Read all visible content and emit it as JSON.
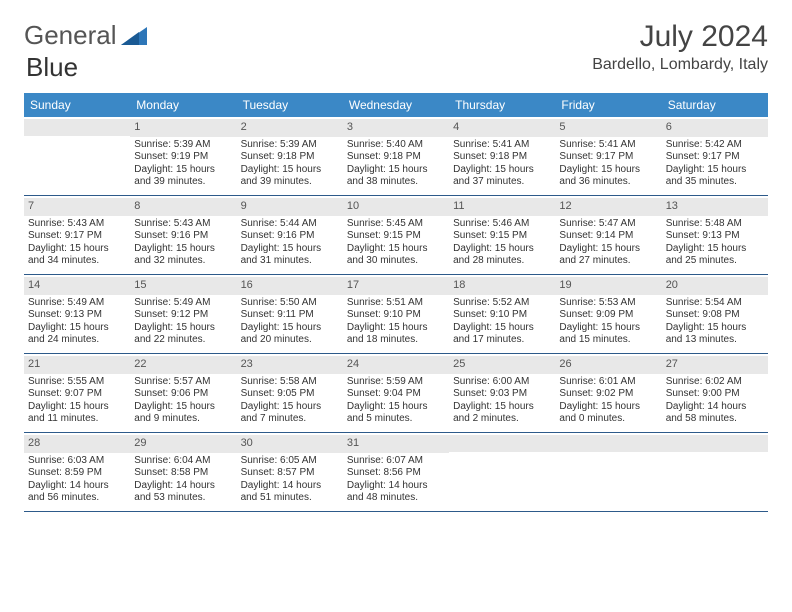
{
  "brand": {
    "part1": "General",
    "part2": "Blue"
  },
  "title": "July 2024",
  "location": "Bardello, Lombardy, Italy",
  "weekday_bg": "#3b88c6",
  "daynum_bg": "#e8e8e8",
  "border_color": "#2d5a8a",
  "weekdays": [
    "Sunday",
    "Monday",
    "Tuesday",
    "Wednesday",
    "Thursday",
    "Friday",
    "Saturday"
  ],
  "weeks": [
    [
      {
        "n": "",
        "sr": "",
        "ss": "",
        "dl1": "",
        "dl2": ""
      },
      {
        "n": "1",
        "sr": "Sunrise: 5:39 AM",
        "ss": "Sunset: 9:19 PM",
        "dl1": "Daylight: 15 hours",
        "dl2": "and 39 minutes."
      },
      {
        "n": "2",
        "sr": "Sunrise: 5:39 AM",
        "ss": "Sunset: 9:18 PM",
        "dl1": "Daylight: 15 hours",
        "dl2": "and 39 minutes."
      },
      {
        "n": "3",
        "sr": "Sunrise: 5:40 AM",
        "ss": "Sunset: 9:18 PM",
        "dl1": "Daylight: 15 hours",
        "dl2": "and 38 minutes."
      },
      {
        "n": "4",
        "sr": "Sunrise: 5:41 AM",
        "ss": "Sunset: 9:18 PM",
        "dl1": "Daylight: 15 hours",
        "dl2": "and 37 minutes."
      },
      {
        "n": "5",
        "sr": "Sunrise: 5:41 AM",
        "ss": "Sunset: 9:17 PM",
        "dl1": "Daylight: 15 hours",
        "dl2": "and 36 minutes."
      },
      {
        "n": "6",
        "sr": "Sunrise: 5:42 AM",
        "ss": "Sunset: 9:17 PM",
        "dl1": "Daylight: 15 hours",
        "dl2": "and 35 minutes."
      }
    ],
    [
      {
        "n": "7",
        "sr": "Sunrise: 5:43 AM",
        "ss": "Sunset: 9:17 PM",
        "dl1": "Daylight: 15 hours",
        "dl2": "and 34 minutes."
      },
      {
        "n": "8",
        "sr": "Sunrise: 5:43 AM",
        "ss": "Sunset: 9:16 PM",
        "dl1": "Daylight: 15 hours",
        "dl2": "and 32 minutes."
      },
      {
        "n": "9",
        "sr": "Sunrise: 5:44 AM",
        "ss": "Sunset: 9:16 PM",
        "dl1": "Daylight: 15 hours",
        "dl2": "and 31 minutes."
      },
      {
        "n": "10",
        "sr": "Sunrise: 5:45 AM",
        "ss": "Sunset: 9:15 PM",
        "dl1": "Daylight: 15 hours",
        "dl2": "and 30 minutes."
      },
      {
        "n": "11",
        "sr": "Sunrise: 5:46 AM",
        "ss": "Sunset: 9:15 PM",
        "dl1": "Daylight: 15 hours",
        "dl2": "and 28 minutes."
      },
      {
        "n": "12",
        "sr": "Sunrise: 5:47 AM",
        "ss": "Sunset: 9:14 PM",
        "dl1": "Daylight: 15 hours",
        "dl2": "and 27 minutes."
      },
      {
        "n": "13",
        "sr": "Sunrise: 5:48 AM",
        "ss": "Sunset: 9:13 PM",
        "dl1": "Daylight: 15 hours",
        "dl2": "and 25 minutes."
      }
    ],
    [
      {
        "n": "14",
        "sr": "Sunrise: 5:49 AM",
        "ss": "Sunset: 9:13 PM",
        "dl1": "Daylight: 15 hours",
        "dl2": "and 24 minutes."
      },
      {
        "n": "15",
        "sr": "Sunrise: 5:49 AM",
        "ss": "Sunset: 9:12 PM",
        "dl1": "Daylight: 15 hours",
        "dl2": "and 22 minutes."
      },
      {
        "n": "16",
        "sr": "Sunrise: 5:50 AM",
        "ss": "Sunset: 9:11 PM",
        "dl1": "Daylight: 15 hours",
        "dl2": "and 20 minutes."
      },
      {
        "n": "17",
        "sr": "Sunrise: 5:51 AM",
        "ss": "Sunset: 9:10 PM",
        "dl1": "Daylight: 15 hours",
        "dl2": "and 18 minutes."
      },
      {
        "n": "18",
        "sr": "Sunrise: 5:52 AM",
        "ss": "Sunset: 9:10 PM",
        "dl1": "Daylight: 15 hours",
        "dl2": "and 17 minutes."
      },
      {
        "n": "19",
        "sr": "Sunrise: 5:53 AM",
        "ss": "Sunset: 9:09 PM",
        "dl1": "Daylight: 15 hours",
        "dl2": "and 15 minutes."
      },
      {
        "n": "20",
        "sr": "Sunrise: 5:54 AM",
        "ss": "Sunset: 9:08 PM",
        "dl1": "Daylight: 15 hours",
        "dl2": "and 13 minutes."
      }
    ],
    [
      {
        "n": "21",
        "sr": "Sunrise: 5:55 AM",
        "ss": "Sunset: 9:07 PM",
        "dl1": "Daylight: 15 hours",
        "dl2": "and 11 minutes."
      },
      {
        "n": "22",
        "sr": "Sunrise: 5:57 AM",
        "ss": "Sunset: 9:06 PM",
        "dl1": "Daylight: 15 hours",
        "dl2": "and 9 minutes."
      },
      {
        "n": "23",
        "sr": "Sunrise: 5:58 AM",
        "ss": "Sunset: 9:05 PM",
        "dl1": "Daylight: 15 hours",
        "dl2": "and 7 minutes."
      },
      {
        "n": "24",
        "sr": "Sunrise: 5:59 AM",
        "ss": "Sunset: 9:04 PM",
        "dl1": "Daylight: 15 hours",
        "dl2": "and 5 minutes."
      },
      {
        "n": "25",
        "sr": "Sunrise: 6:00 AM",
        "ss": "Sunset: 9:03 PM",
        "dl1": "Daylight: 15 hours",
        "dl2": "and 2 minutes."
      },
      {
        "n": "26",
        "sr": "Sunrise: 6:01 AM",
        "ss": "Sunset: 9:02 PM",
        "dl1": "Daylight: 15 hours",
        "dl2": "and 0 minutes."
      },
      {
        "n": "27",
        "sr": "Sunrise: 6:02 AM",
        "ss": "Sunset: 9:00 PM",
        "dl1": "Daylight: 14 hours",
        "dl2": "and 58 minutes."
      }
    ],
    [
      {
        "n": "28",
        "sr": "Sunrise: 6:03 AM",
        "ss": "Sunset: 8:59 PM",
        "dl1": "Daylight: 14 hours",
        "dl2": "and 56 minutes."
      },
      {
        "n": "29",
        "sr": "Sunrise: 6:04 AM",
        "ss": "Sunset: 8:58 PM",
        "dl1": "Daylight: 14 hours",
        "dl2": "and 53 minutes."
      },
      {
        "n": "30",
        "sr": "Sunrise: 6:05 AM",
        "ss": "Sunset: 8:57 PM",
        "dl1": "Daylight: 14 hours",
        "dl2": "and 51 minutes."
      },
      {
        "n": "31",
        "sr": "Sunrise: 6:07 AM",
        "ss": "Sunset: 8:56 PM",
        "dl1": "Daylight: 14 hours",
        "dl2": "and 48 minutes."
      },
      {
        "n": "",
        "sr": "",
        "ss": "",
        "dl1": "",
        "dl2": ""
      },
      {
        "n": "",
        "sr": "",
        "ss": "",
        "dl1": "",
        "dl2": ""
      },
      {
        "n": "",
        "sr": "",
        "ss": "",
        "dl1": "",
        "dl2": ""
      }
    ]
  ]
}
